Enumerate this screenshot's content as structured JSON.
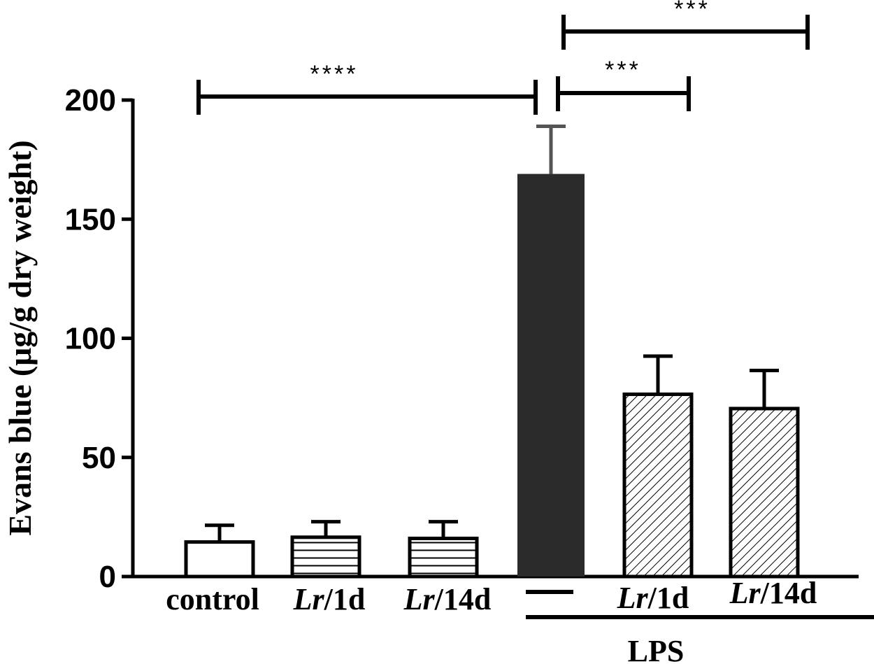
{
  "chart_data": {
    "type": "bar",
    "title": "",
    "ylabel": "Evans blue (μg/g dry weight)",
    "xlabel": "",
    "ylim": [
      0,
      200
    ],
    "yticks": [
      "0",
      "50",
      "100",
      "150",
      "200"
    ],
    "categories": [
      {
        "italic": "",
        "rest": "control"
      },
      {
        "italic": "Lr",
        "rest": "/1d"
      },
      {
        "italic": "Lr",
        "rest": "/14d"
      },
      {
        "italic": "",
        "rest": ""
      },
      {
        "italic": "Lr",
        "rest": "/1d"
      },
      {
        "italic": "Lr",
        "rest": "/14d"
      }
    ],
    "values": [
      14.5,
      16.5,
      16,
      169,
      76.5,
      70.5
    ],
    "errors": [
      7,
      6.5,
      7,
      20,
      16,
      16
    ],
    "fills": [
      "white",
      "horizontal-lines",
      "horizontal-lines",
      "solid",
      "diagonal-hatch",
      "diagonal-hatch"
    ],
    "colors": {
      "solid": "#2b2b2b",
      "outline": "#000000",
      "background": "#ffffff"
    },
    "group_label": "LPS",
    "significance": [
      {
        "from": 0,
        "to": 3,
        "label": "****"
      },
      {
        "from": 3,
        "to": 4,
        "label": "***"
      },
      {
        "from": 3,
        "to": 5,
        "label": "***"
      }
    ],
    "grid": false,
    "legend": "none"
  }
}
